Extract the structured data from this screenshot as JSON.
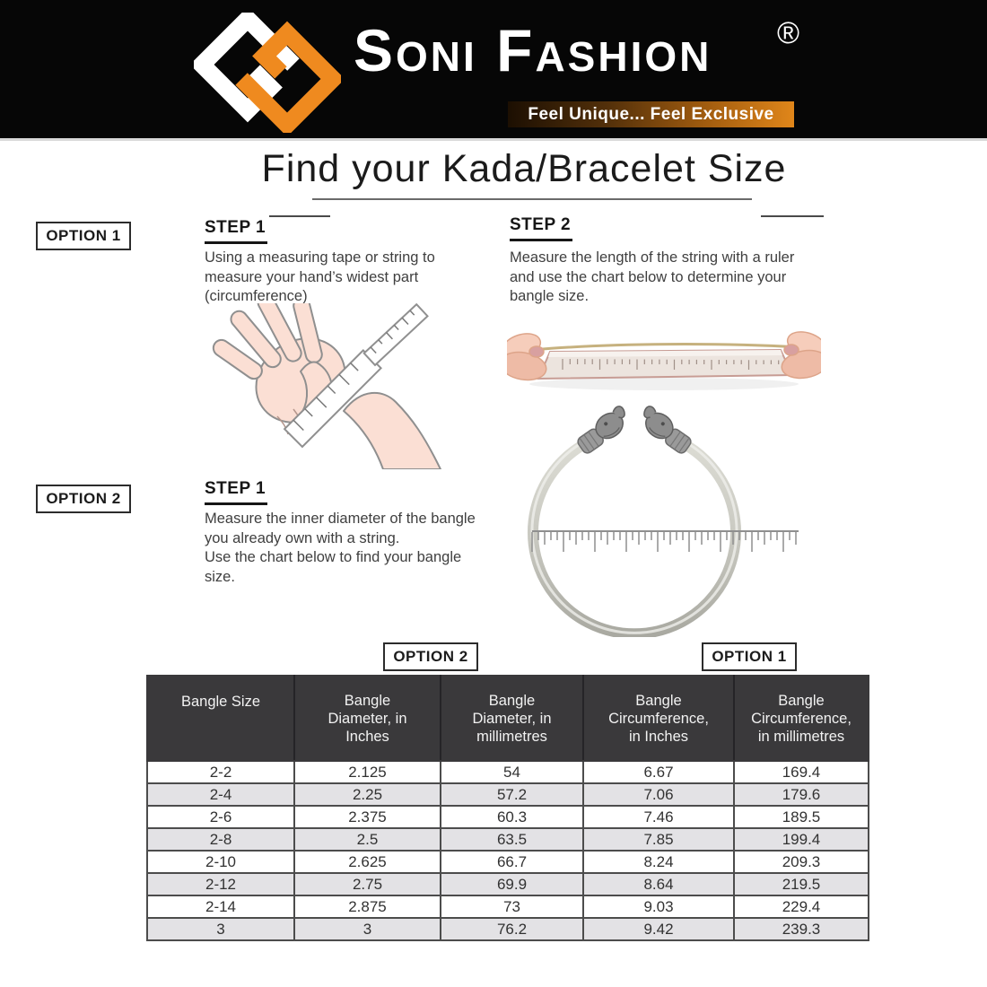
{
  "header": {
    "brand": "Soni Fashion",
    "registered_mark": "®",
    "tagline": "Feel Unique... Feel Exclusive"
  },
  "page_title": "Find your Kada/Bracelet Size",
  "option1": {
    "label": "OPTION 1",
    "step1": {
      "label": "STEP 1",
      "text": "Using a measuring tape or string to\nmeasure your hand’s widest part\n(circumference)"
    },
    "step2": {
      "label": "STEP 2",
      "text": "Measure the length of the string with a ruler\nand use the chart below to determine your\nbangle size."
    }
  },
  "option2": {
    "label": "OPTION 2",
    "step1": {
      "label": "STEP 1",
      "text": "Measure the inner diameter of the bangle\nyou already own with a string.\nUse the chart below to find your bangle\nsize."
    }
  },
  "table_labels": {
    "diameter_option": "OPTION 2",
    "circumference_option": "OPTION 1"
  },
  "size_chart": {
    "type": "table",
    "columns": [
      "Bangle Size",
      "Bangle\nDiameter, in\nInches",
      "Bangle\nDiameter, in\nmillimetres",
      "Bangle\nCircumference,\nin Inches",
      "Bangle\nCircumference,\nin millimetres"
    ],
    "rows": [
      [
        "2-2",
        "2.125",
        "54",
        "6.67",
        "169.4"
      ],
      [
        "2-4",
        "2.25",
        "57.2",
        "7.06",
        "179.6"
      ],
      [
        "2-6",
        "2.375",
        "60.3",
        "7.46",
        "189.5"
      ],
      [
        "2-8",
        "2.5",
        "63.5",
        "7.85",
        "199.4"
      ],
      [
        "2-10",
        "2.625",
        "66.7",
        "8.24",
        "209.3"
      ],
      [
        "2-12",
        "2.75",
        "69.9",
        "8.64",
        "219.5"
      ],
      [
        "2-14",
        "2.875",
        "73",
        "9.03",
        "229.4"
      ],
      [
        "3",
        "3",
        "76.2",
        "9.42",
        "239.3"
      ]
    ]
  },
  "colors": {
    "brand_orange": "#ef8a1f",
    "banner_black": "#060606",
    "table_header_bg": "#3a393b",
    "row_alt_bg": "#e3e2e5",
    "table_border": "#4c4c4c"
  },
  "icons": [
    "soni-fashion-logo-icon",
    "hand-measuring-tape-icon",
    "string-over-ruler-icon",
    "bangle-with-ruler-icon"
  ]
}
